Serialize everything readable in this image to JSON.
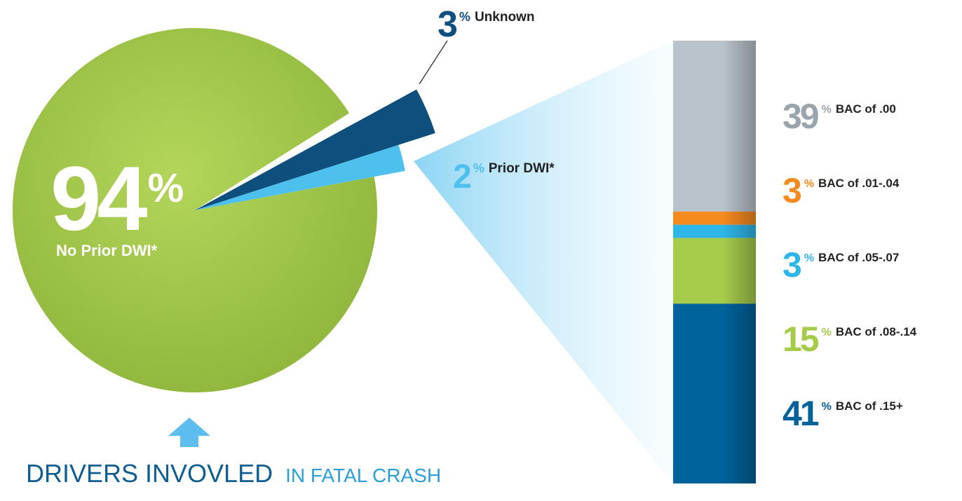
{
  "chart_data": [
    {
      "type": "pie",
      "title": "DRIVERS INVOVLED",
      "subtitle": "IN FATAL CRASH",
      "labels": [
        "No Prior DWI*",
        "Unknown",
        "Prior DWI*"
      ],
      "values": [
        94,
        3,
        2
      ],
      "colors": [
        "#a6cb4b",
        "#0e4f7e",
        "#4dc0ee"
      ],
      "value_suffix": "%"
    },
    {
      "type": "bar",
      "stacked": true,
      "value_suffix": "%",
      "series": [
        {
          "name": "BAC of .00",
          "color": "#b9c3cb",
          "values": [
            39
          ]
        },
        {
          "name": "BAC of .01-.04",
          "color": "#f58a1f",
          "values": [
            3
          ]
        },
        {
          "name": "BAC of .05-.07",
          "color": "#2fb6e9",
          "values": [
            3
          ]
        },
        {
          "name": "BAC of .08-.14",
          "color": "#a6cb4b",
          "values": [
            15
          ]
        },
        {
          "name": "BAC of .15+",
          "color": "#00629b",
          "values": [
            41
          ]
        }
      ]
    }
  ]
}
